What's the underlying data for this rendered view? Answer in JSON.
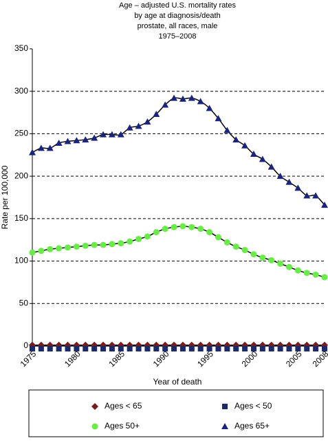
{
  "chart_data": {
    "type": "line",
    "title": [
      "Age – adjusted U.S. mortality rates",
      "by age at diagnosis/death",
      "prostate, all races, male",
      "1975–2008"
    ],
    "x_label": "Year of death",
    "y_label": "Rate per 100,000",
    "x": [
      1975,
      1976,
      1977,
      1978,
      1979,
      1980,
      1981,
      1982,
      1983,
      1984,
      1985,
      1986,
      1987,
      1988,
      1989,
      1990,
      1991,
      1992,
      1993,
      1994,
      1995,
      1996,
      1997,
      1998,
      1999,
      2000,
      2001,
      2002,
      2003,
      2004,
      2005,
      2006,
      2007,
      2008
    ],
    "xlim": [
      1975,
      2008
    ],
    "xticks": [
      1975,
      1980,
      1985,
      1990,
      1995,
      2000,
      2005,
      2008
    ],
    "ylim": [
      0,
      350
    ],
    "yticks": [
      0,
      50,
      100,
      150,
      200,
      250,
      300,
      350
    ],
    "grid": true,
    "series": [
      {
        "name": "Ages < 65",
        "color": "#7b1c1c",
        "marker": "diamond",
        "values": [
          1,
          1,
          1,
          1,
          1,
          1,
          1,
          1,
          1,
          1,
          1,
          1,
          1,
          1,
          1,
          1,
          1,
          1,
          1,
          1,
          1,
          1,
          1,
          1,
          1,
          1,
          1,
          1,
          1,
          1,
          1,
          1,
          1,
          1
        ]
      },
      {
        "name": "Ages < 50",
        "color": "#1a2a6c",
        "marker": "square",
        "values": [
          0,
          0,
          0,
          0,
          0,
          0,
          0,
          0,
          0,
          0,
          0,
          0,
          0,
          0,
          0,
          0,
          0,
          0,
          0,
          0,
          0,
          0,
          0,
          0,
          0,
          0,
          0,
          0,
          0,
          0,
          0,
          0,
          0,
          0
        ]
      },
      {
        "name": "Ages 50+",
        "color": "#66ee44",
        "marker": "circle",
        "values": [
          110,
          112,
          114,
          115,
          116,
          117,
          118,
          119,
          119,
          120,
          121,
          123,
          126,
          129,
          134,
          138,
          140,
          141,
          140,
          138,
          134,
          128,
          122,
          117,
          113,
          108,
          104,
          101,
          97,
          93,
          89,
          86,
          84,
          81
        ]
      },
      {
        "name": "Ages 65+",
        "color": "#1a237e",
        "marker": "triangle",
        "values": [
          228,
          233,
          233,
          239,
          241,
          242,
          243,
          245,
          249,
          249,
          249,
          257,
          259,
          264,
          273,
          284,
          292,
          291,
          292,
          288,
          280,
          268,
          254,
          243,
          236,
          226,
          220,
          211,
          200,
          193,
          186,
          177,
          177,
          166
        ]
      }
    ]
  }
}
